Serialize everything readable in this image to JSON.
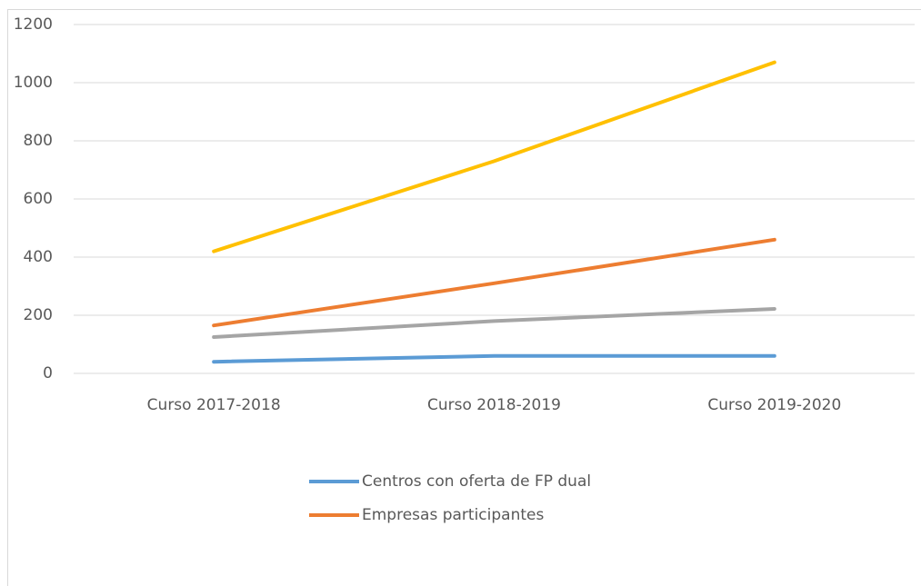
{
  "chart_data": {
    "type": "line",
    "categories": [
      "Curso 2017-2018",
      "Curso 2018-2019",
      "Curso 2019-2020"
    ],
    "series": [
      {
        "name": "Centros con oferta de FP dual",
        "color": "#5b9bd5",
        "values": [
          40,
          60,
          60
        ]
      },
      {
        "name": "Empresas participantes",
        "color": "#ed7d31",
        "values": [
          165,
          310,
          460
        ]
      },
      {
        "color": "#a5a5a5",
        "values": [
          125,
          180,
          222
        ]
      },
      {
        "color": "#ffc000",
        "values": [
          420,
          730,
          1070
        ]
      }
    ],
    "ylim": [
      0,
      1200
    ],
    "yticks": [
      0,
      200,
      400,
      600,
      800,
      1000,
      1200
    ],
    "grid": true
  }
}
